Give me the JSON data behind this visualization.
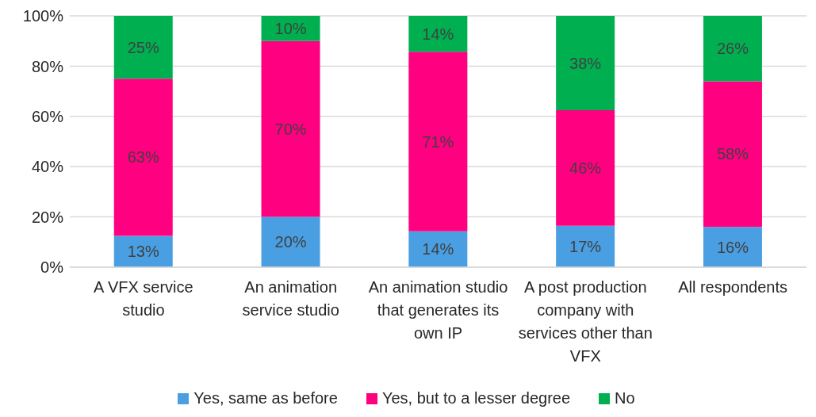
{
  "chart_data": {
    "type": "bar",
    "stacked": true,
    "categories": [
      "A VFX service studio",
      "An animation service studio",
      "An animation studio that generates its own IP",
      "A post production company with services other than VFX",
      "All respondents"
    ],
    "series": [
      {
        "name": "Yes, same as before",
        "color": "#4a9fe3",
        "values": [
          12.5,
          20,
          14.3,
          16.5,
          16
        ],
        "value_labels": [
          "13%",
          "20%",
          "14%",
          "17%",
          "16%"
        ]
      },
      {
        "name": "Yes, but to a lesser degree",
        "color": "#ff0080",
        "values": [
          62.5,
          70,
          71.4,
          46,
          58
        ],
        "value_labels": [
          "63%",
          "70%",
          "71%",
          "46%",
          "58%"
        ]
      },
      {
        "name": "No",
        "color": "#00b050",
        "values": [
          25,
          10,
          14.3,
          37.5,
          26
        ],
        "value_labels": [
          "25%",
          "10%",
          "14%",
          "38%",
          "26%"
        ]
      }
    ],
    "ylim": [
      0,
      100
    ],
    "yticks": [
      {
        "value": 0,
        "label": "0%"
      },
      {
        "value": 20,
        "label": "20%"
      },
      {
        "value": 40,
        "label": "40%"
      },
      {
        "value": 60,
        "label": "60%"
      },
      {
        "value": 80,
        "label": "80%"
      },
      {
        "value": 100,
        "label": "100%"
      }
    ],
    "grid": "y",
    "legend": "bottom"
  }
}
